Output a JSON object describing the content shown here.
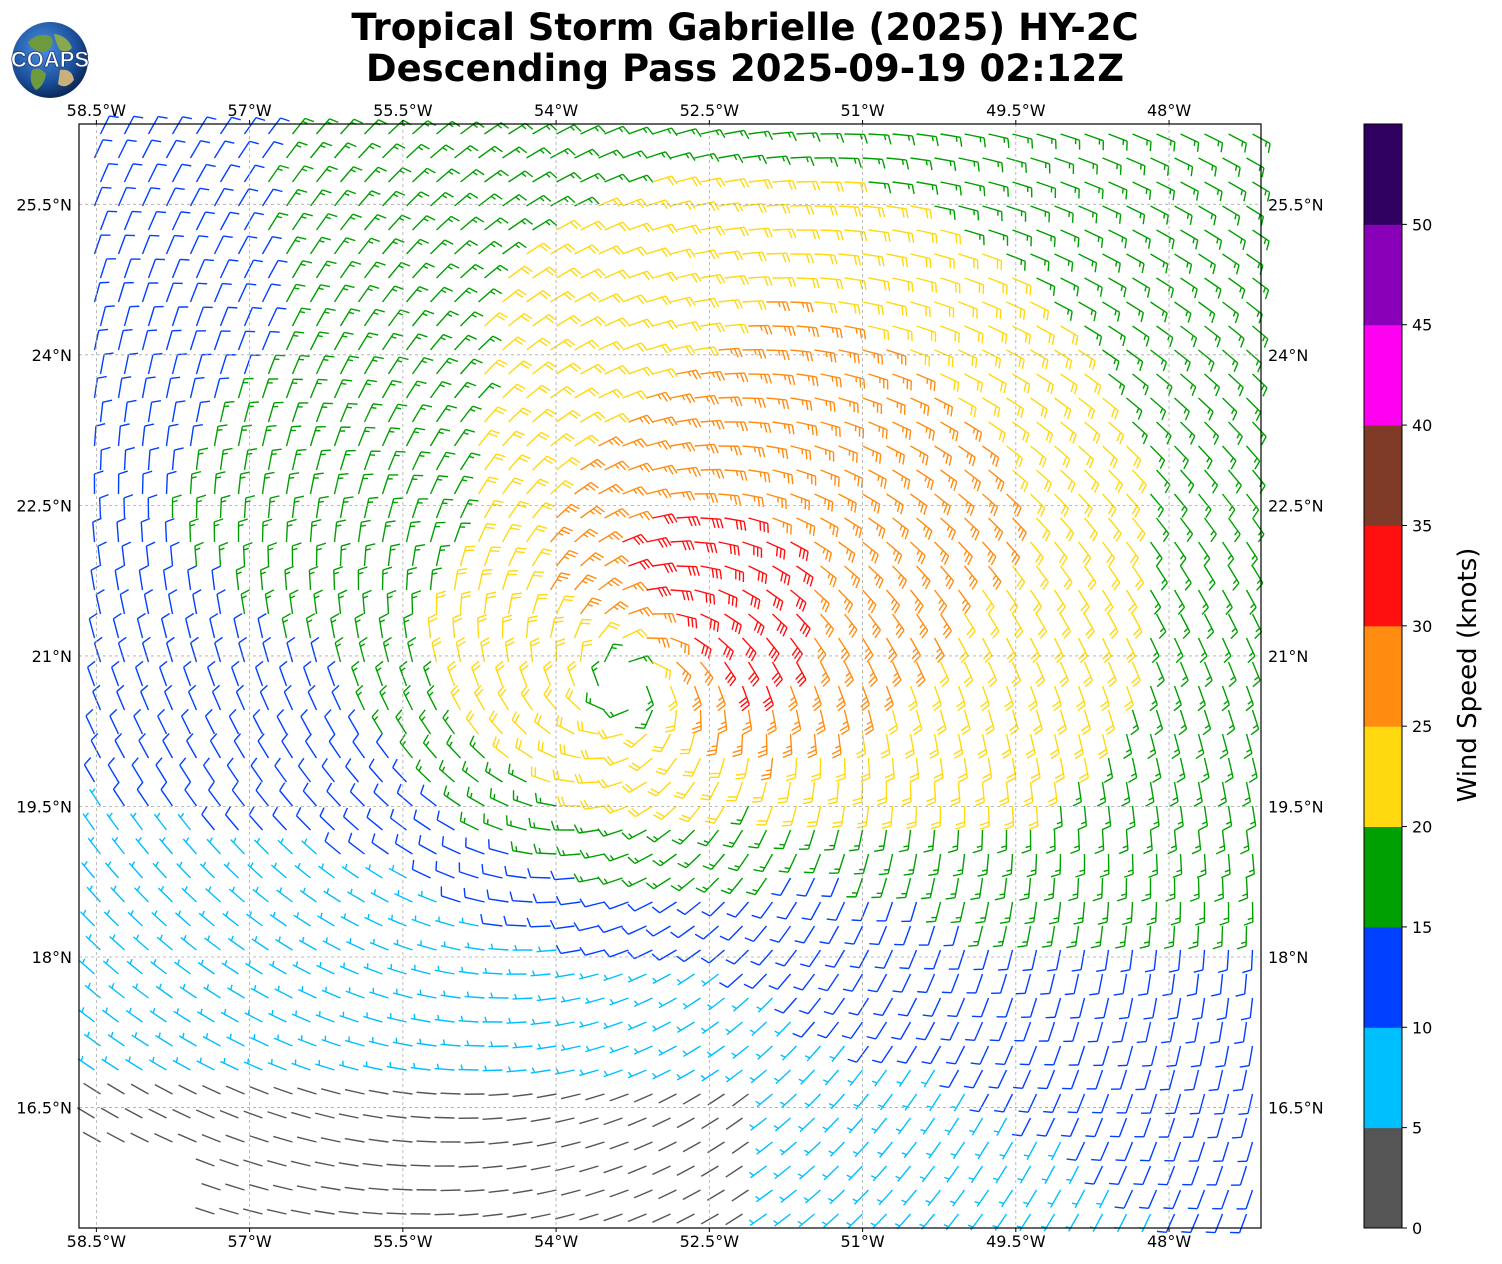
{
  "title": {
    "line1": "Tropical Storm Gabrielle (2025) HY-2C",
    "line2": "Descending Pass 2025-09-19 02:12Z"
  },
  "logo": {
    "text": "COAPS",
    "icon": "earth-globe-logo"
  },
  "map": {
    "lon_range": [
      -58.67,
      -47.1
    ],
    "lat_range": [
      15.3,
      26.3
    ],
    "lon_ticks": [
      {
        "value": -58.5,
        "label": "58.5°W"
      },
      {
        "value": -57,
        "label": "57°W"
      },
      {
        "value": -55.5,
        "label": "55.5°W"
      },
      {
        "value": -54,
        "label": "54°W"
      },
      {
        "value": -52.5,
        "label": "52.5°W"
      },
      {
        "value": -51,
        "label": "51°W"
      },
      {
        "value": -49.5,
        "label": "49.5°W"
      },
      {
        "value": -48,
        "label": "48°W"
      }
    ],
    "lat_ticks": [
      {
        "value": 25.5,
        "label": "25.5°N"
      },
      {
        "value": 24,
        "label": "24°N"
      },
      {
        "value": 22.5,
        "label": "22.5°N"
      },
      {
        "value": 21,
        "label": "21°N"
      },
      {
        "value": 19.5,
        "label": "19.5°N"
      },
      {
        "value": 18,
        "label": "18°N"
      },
      {
        "value": 16.5,
        "label": "16.5°N"
      }
    ],
    "grid": true,
    "storm_center": {
      "lon": -53.3,
      "lat": 20.7
    },
    "wind_field": "wind barbs colored by speed, cyclonic circulation around storm center"
  },
  "colorbar": {
    "label": "Wind Speed (knots)",
    "ticks": [
      "0",
      "5",
      "10",
      "15",
      "20",
      "25",
      "30",
      "35",
      "40",
      "45",
      "50"
    ],
    "colors": [
      "#555555",
      "#00bfff",
      "#0040ff",
      "#00a000",
      "#ffd810",
      "#ff8c10",
      "#ff1010",
      "#7f3a28",
      "#ff00f0",
      "#8a00b8",
      "#300060"
    ]
  }
}
